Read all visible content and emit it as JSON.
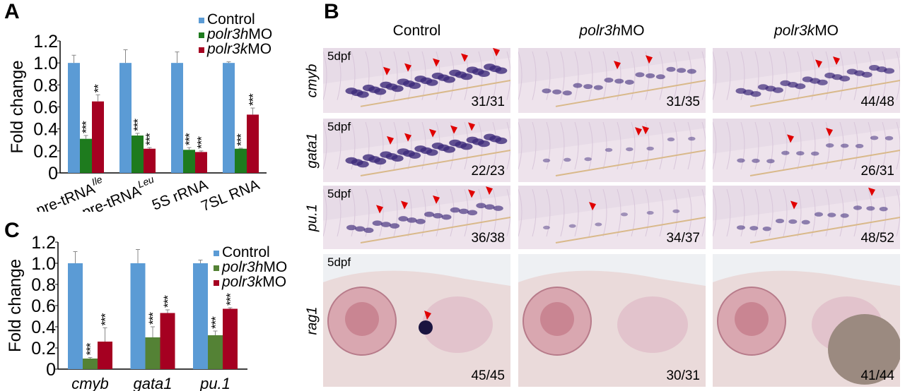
{
  "panel_labels": {
    "a": "A",
    "b": "B",
    "c": "C"
  },
  "colors": {
    "control": "#5b9bd5",
    "polr3h": "#1e7b1e",
    "polr3h_c": "#548235",
    "polr3k": "#a50021",
    "arrow": "#e00000"
  },
  "chart_data": [
    {
      "id": "A",
      "type": "bar",
      "ylabel": "Fold change",
      "ylim": [
        0,
        1.2
      ],
      "yticks": [
        "0",
        "0.2",
        "0.4",
        "0.6",
        "0.8",
        "1.0",
        "1.2"
      ],
      "categories": [
        {
          "text": "pre-tRNA",
          "sup": "Ile"
        },
        {
          "text": "pre-tRNA",
          "sup": "Leu"
        },
        {
          "text": "5S rRNA",
          "sup": ""
        },
        {
          "text": "7SL RNA",
          "sup": ""
        }
      ],
      "legend": [
        {
          "italic": "",
          "rest": "Control"
        },
        {
          "italic": "polr3h",
          "rest": "MO"
        },
        {
          "italic": "polr3k",
          "rest": "MO"
        }
      ],
      "legend_position": "top-right",
      "series": [
        {
          "name": "Control",
          "values": [
            1.0,
            1.0,
            1.0,
            1.0
          ],
          "errors": [
            0.07,
            0.12,
            0.1,
            0.01
          ],
          "sig": [
            "",
            "",
            "",
            ""
          ]
        },
        {
          "name": "polr3hMO",
          "values": [
            0.31,
            0.34,
            0.21,
            0.22
          ],
          "errors": [
            0.03,
            0.02,
            0.02,
            0.005
          ],
          "sig": [
            "***",
            "***",
            "***",
            "***"
          ]
        },
        {
          "name": "polr3kMO",
          "values": [
            0.65,
            0.22,
            0.19,
            0.53
          ],
          "errors": [
            0.06,
            0.01,
            0.01,
            0.06
          ],
          "sig": [
            "**",
            "***",
            "***",
            "***"
          ]
        }
      ]
    },
    {
      "id": "C",
      "type": "bar",
      "ylabel": "Fold change",
      "ylim": [
        0,
        1.2
      ],
      "yticks": [
        "0",
        "0.2",
        "0.4",
        "0.6",
        "0.8",
        "1.0",
        "1.2"
      ],
      "categories": [
        {
          "text": "cmyb",
          "sup": ""
        },
        {
          "text": "gata1",
          "sup": ""
        },
        {
          "text": "pu.1",
          "sup": ""
        }
      ],
      "legend": [
        {
          "italic": "",
          "rest": "Control"
        },
        {
          "italic": "polr3h",
          "rest": "MO"
        },
        {
          "italic": "polr3k",
          "rest": "MO"
        }
      ],
      "legend_position": "top-right",
      "series": [
        {
          "name": "Control",
          "values": [
            1.0,
            1.0,
            1.0
          ],
          "errors": [
            0.11,
            0.13,
            0.03
          ],
          "sig": [
            "",
            "",
            ""
          ]
        },
        {
          "name": "polr3hMO",
          "values": [
            0.1,
            0.3,
            0.32
          ],
          "errors": [
            0.01,
            0.1,
            0.04
          ],
          "sig": [
            "***",
            "***",
            "***"
          ]
        },
        {
          "name": "polr3kMO",
          "values": [
            0.26,
            0.53,
            0.57
          ],
          "errors": [
            0.13,
            0.03,
            0.01
          ],
          "sig": [
            "***",
            "***",
            "***"
          ]
        }
      ]
    }
  ],
  "panel_b": {
    "columns": [
      {
        "italic": "",
        "rest": "Control"
      },
      {
        "italic": "polr3h",
        "rest": "MO"
      },
      {
        "italic": "polr3k",
        "rest": "MO"
      }
    ],
    "rows": [
      {
        "gene": "cmyb",
        "age": "5dpf",
        "counts": [
          "31/31",
          "31/35",
          "44/48"
        ]
      },
      {
        "gene": "gata1",
        "age": "5dpf",
        "counts": [
          "22/23",
          "",
          "26/31"
        ]
      },
      {
        "gene": "pu.1",
        "age": "5dpf",
        "counts": [
          "36/38",
          "34/37",
          "48/52"
        ]
      },
      {
        "gene": "rag1",
        "age": "5dpf",
        "counts": [
          "45/45",
          "30/31",
          "41/44"
        ]
      }
    ]
  }
}
